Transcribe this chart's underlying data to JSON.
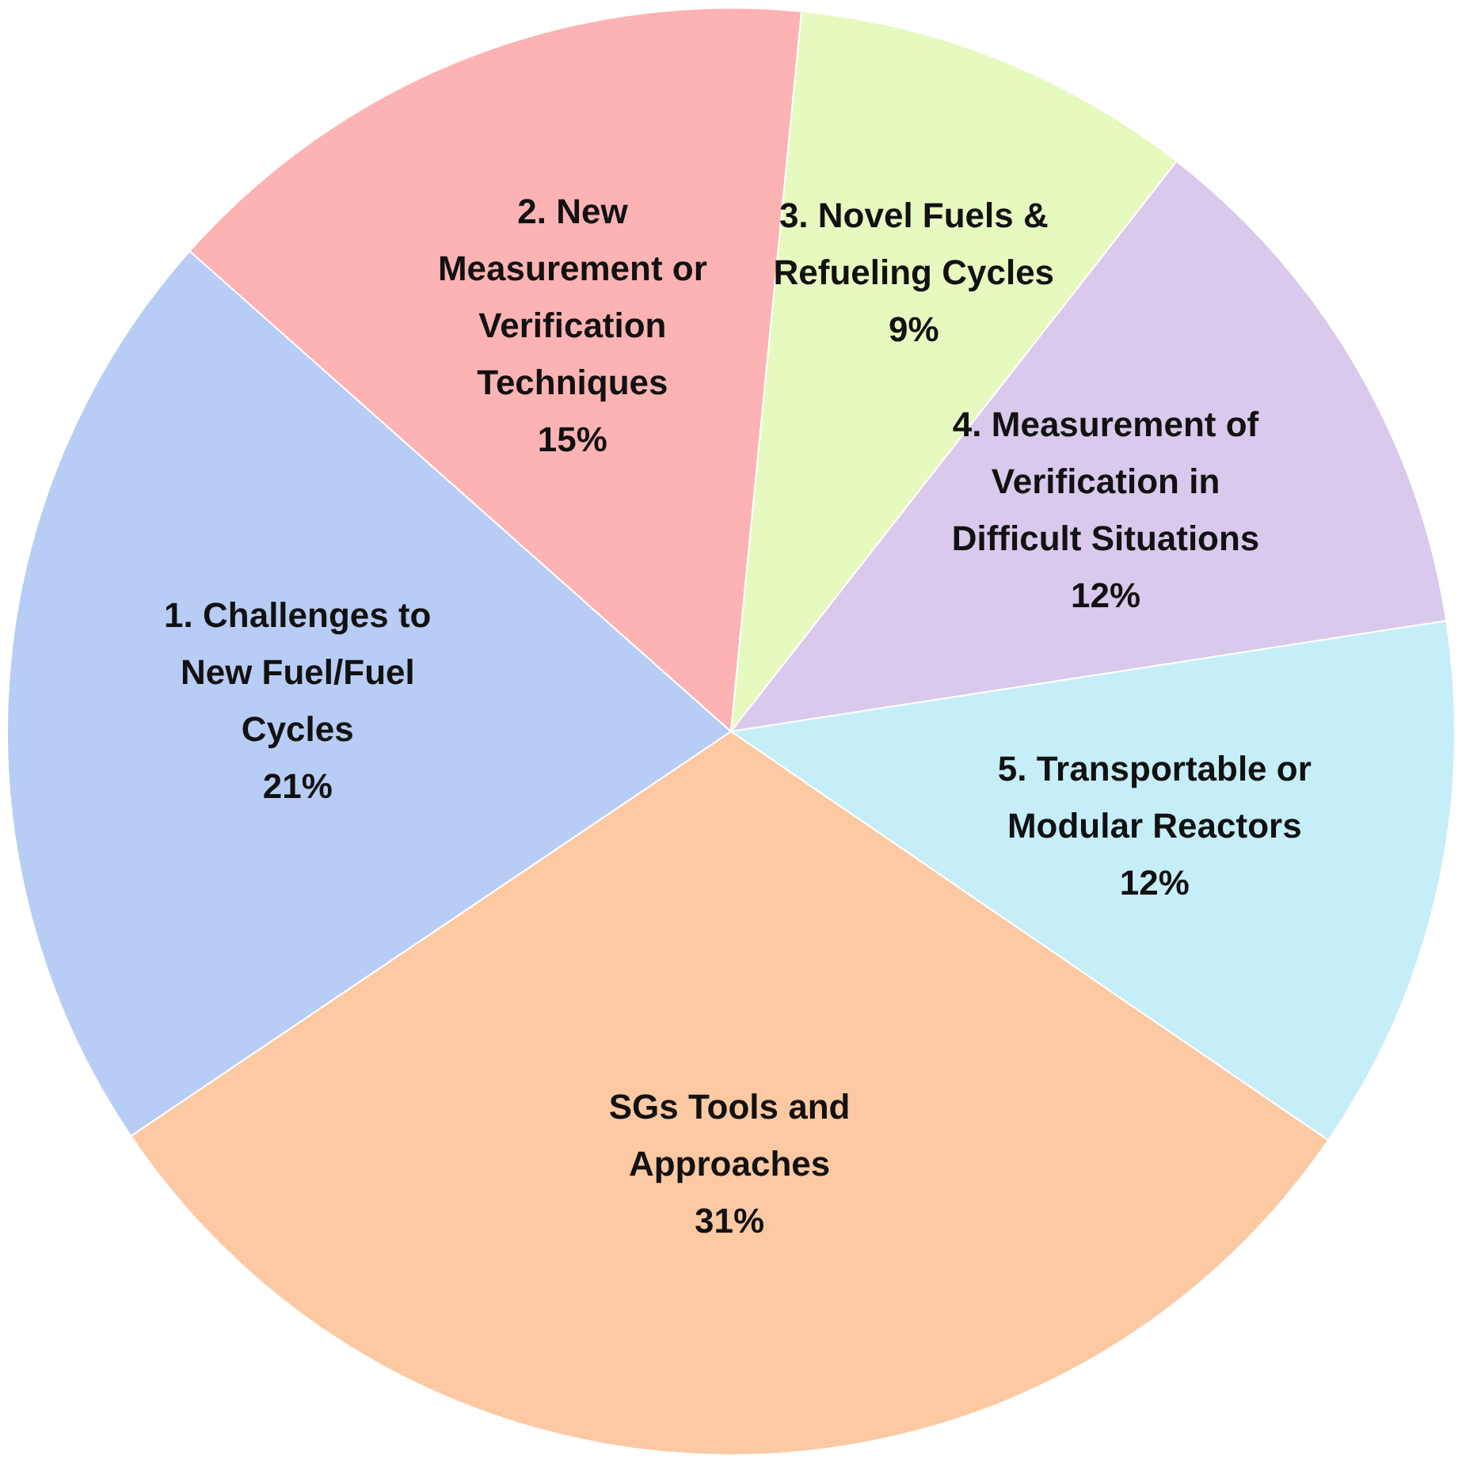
{
  "chart_data": {
    "type": "pie",
    "categories": [
      "1. Challenges to New Fuel/Fuel Cycles",
      "2. New Measurement or Verification Techniques",
      "3. Novel Fuels & Refueling Cycles",
      "4. Measurement of Verification in Difficult Situations",
      "5. Transportable or Modular Reactors",
      "SGs Tools and Approaches"
    ],
    "values": [
      21,
      15,
      9,
      12,
      12,
      31
    ],
    "colors": [
      "#b8cdf5",
      "#fdb3b3",
      "#e6f9bf",
      "#d9c9ec",
      "#c5eef9",
      "#fcc9a3"
    ],
    "value_labels": [
      "21%",
      "15%",
      "9%",
      "12%",
      "12%",
      "31%"
    ],
    "legend": false
  }
}
